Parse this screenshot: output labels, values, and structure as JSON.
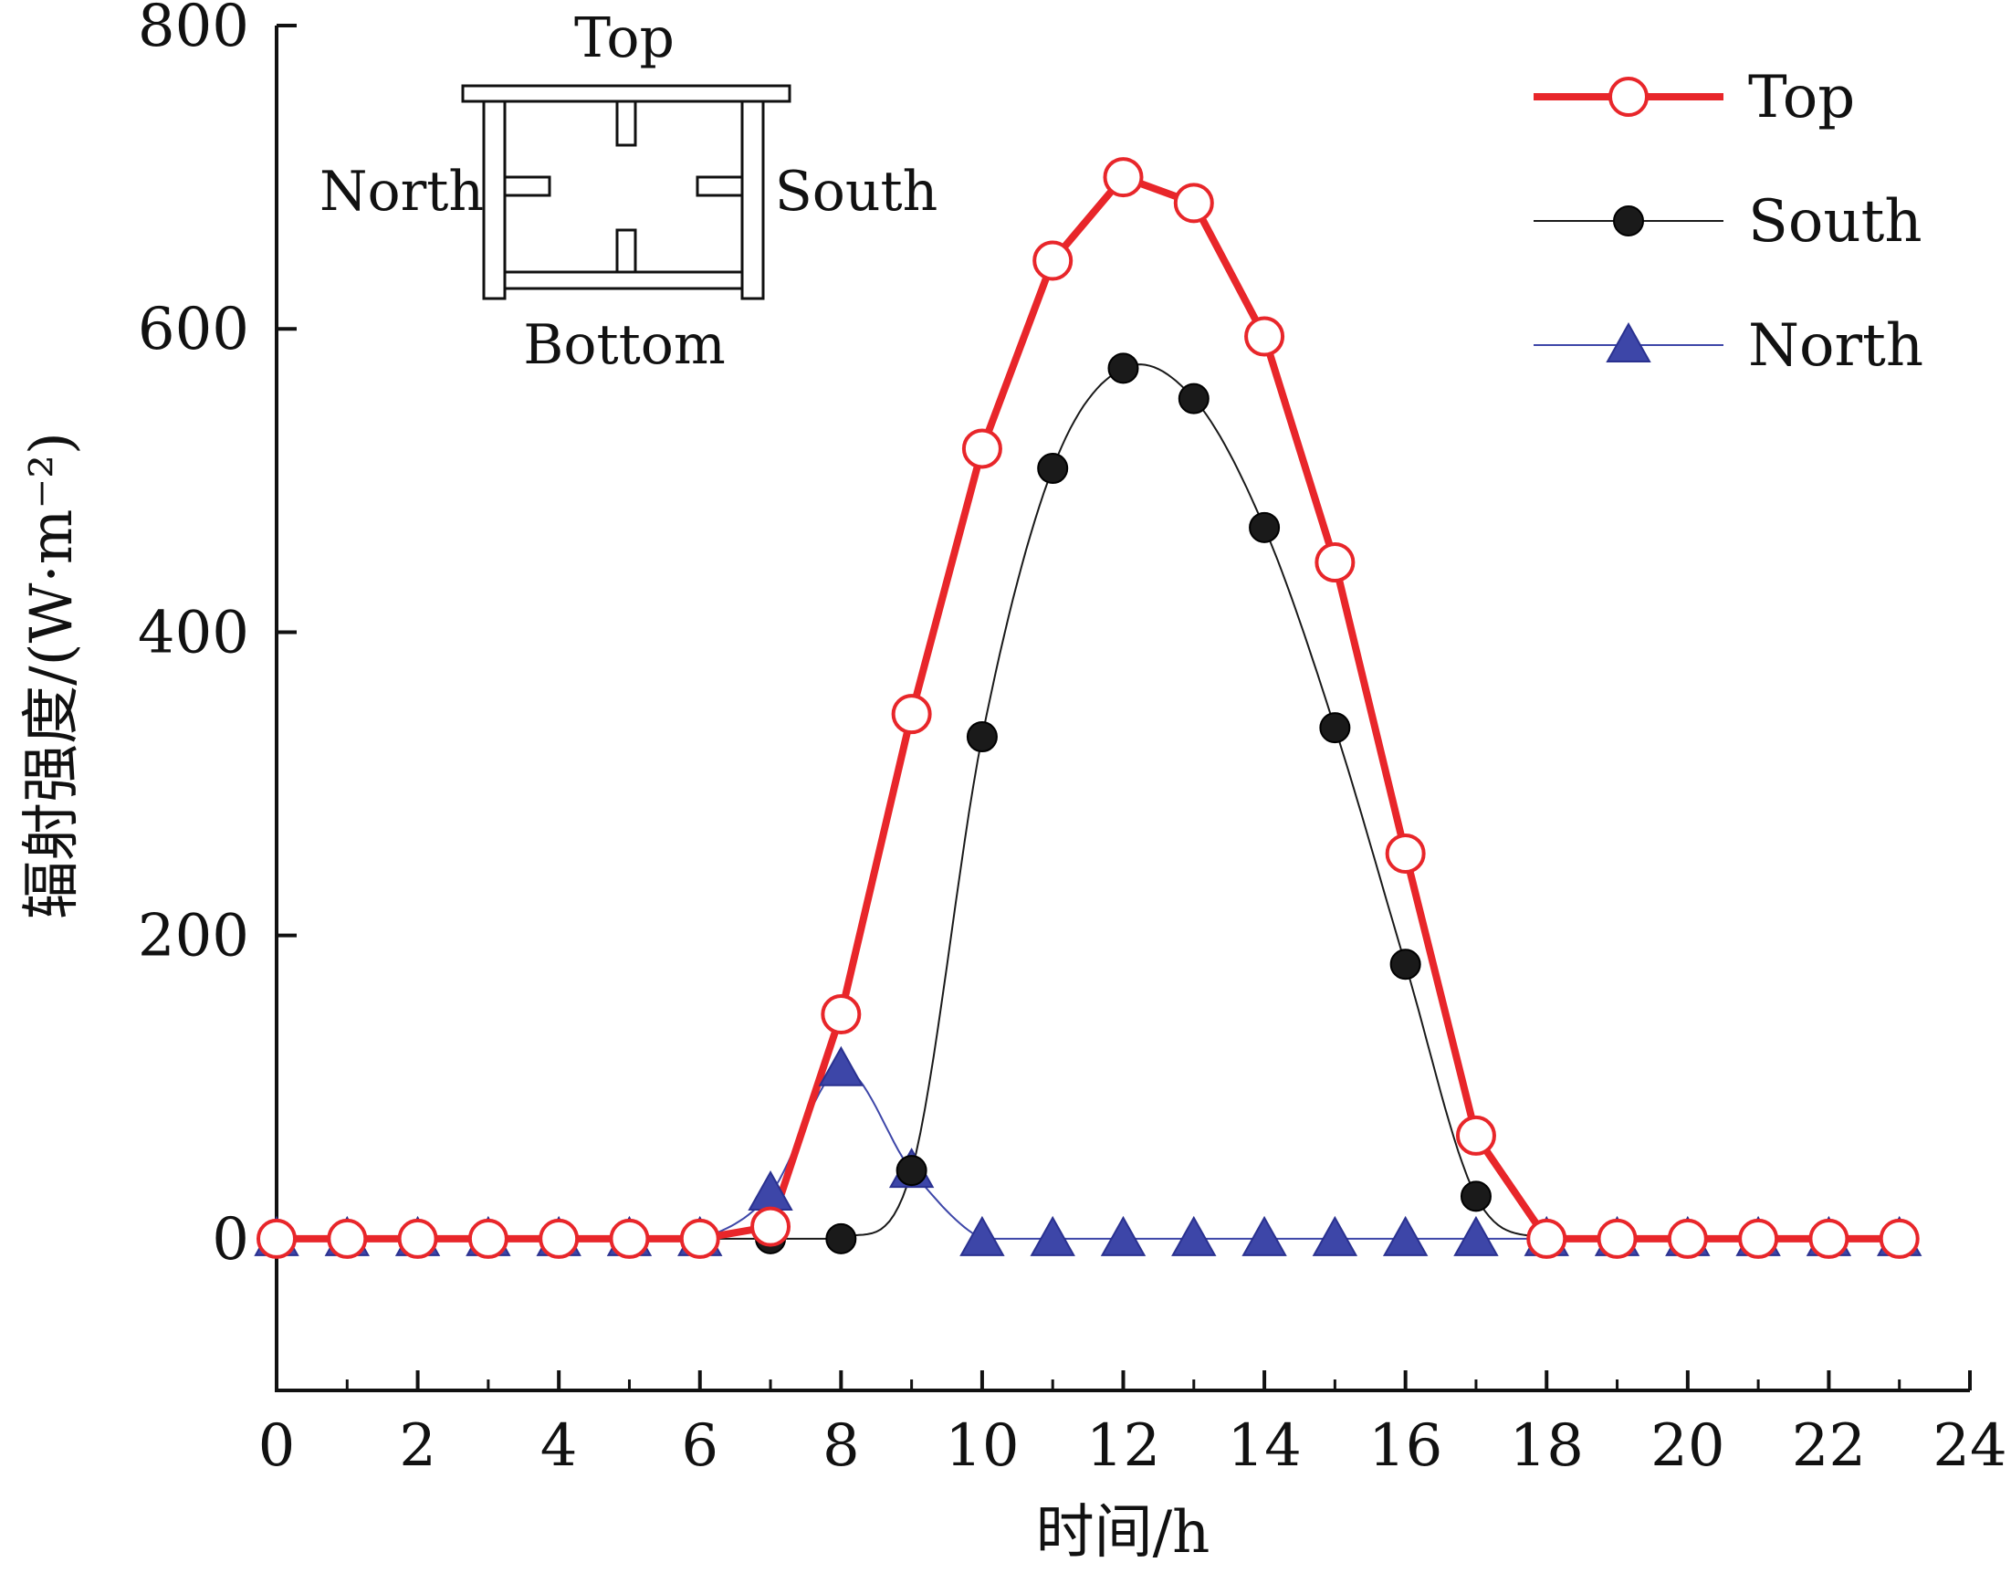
{
  "chart_data": {
    "type": "line",
    "xlabel": "时间/h",
    "ylabel": "辐射强度/(W·m⁻²)",
    "xlim": [
      0,
      24
    ],
    "ylim": [
      -100,
      800
    ],
    "x_ticks": [
      0,
      2,
      4,
      6,
      8,
      10,
      12,
      14,
      16,
      18,
      20,
      22,
      24
    ],
    "y_ticks": [
      0,
      200,
      400,
      600,
      800
    ],
    "grid": false,
    "legend_position": "top-right",
    "x": [
      0,
      1,
      2,
      3,
      4,
      5,
      6,
      7,
      8,
      9,
      10,
      11,
      12,
      13,
      14,
      15,
      16,
      17,
      18,
      19,
      20,
      21,
      22,
      23
    ],
    "series": [
      {
        "name": "Top",
        "color": "#e8262a",
        "marker": "open-circle",
        "values": [
          0,
          0,
          0,
          0,
          0,
          0,
          0,
          8,
          148,
          346,
          521,
          645,
          700,
          683,
          595,
          446,
          254,
          68,
          0,
          0,
          0,
          0,
          0,
          0
        ]
      },
      {
        "name": "South",
        "color": "#1a1a1a",
        "marker": "filled-circle",
        "values": [
          0,
          0,
          0,
          0,
          0,
          0,
          0,
          0,
          0,
          45,
          331,
          508,
          574,
          554,
          469,
          337,
          181,
          28,
          0,
          0,
          0,
          0,
          0,
          0
        ]
      },
      {
        "name": "North",
        "color": "#3d46a8",
        "marker": "filled-triangle",
        "values": [
          0,
          0,
          0,
          0,
          0,
          0,
          0,
          30,
          112,
          45,
          0,
          0,
          0,
          0,
          0,
          0,
          0,
          0,
          0,
          0,
          0,
          0,
          0,
          0
        ]
      }
    ],
    "inset": {
      "labels": {
        "top": "Top",
        "north": "North",
        "south": "South",
        "bottom": "Bottom"
      }
    }
  }
}
